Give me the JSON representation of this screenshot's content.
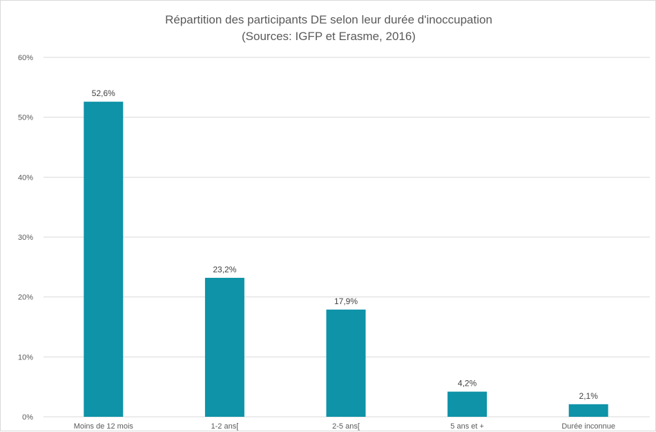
{
  "chart_data": {
    "type": "bar",
    "title": "Répartition des participants DE selon leur durée d'inoccupation",
    "subtitle": "(Sources: IGFP et Erasme, 2016)",
    "xlabel": "",
    "ylabel": "",
    "categories": [
      "Moins de 12 mois",
      "1-2 ans[",
      "2-5 ans[",
      "5 ans et +",
      "Durée inconnue"
    ],
    "values": [
      52.6,
      23.2,
      17.9,
      4.2,
      2.1
    ],
    "data_labels": [
      "52,6%",
      "23,2%",
      "17,9%",
      "4,2%",
      "2,1%"
    ],
    "y_ticks": [
      0,
      10,
      20,
      30,
      40,
      50,
      60
    ],
    "y_tick_labels": [
      "0%",
      "10%",
      "20%",
      "30%",
      "40%",
      "50%",
      "60%"
    ],
    "ylim": [
      0,
      60
    ],
    "grid": true,
    "legend": "none",
    "bar_color": "#0e93a8",
    "gridline_color": "#d9d9d9"
  }
}
